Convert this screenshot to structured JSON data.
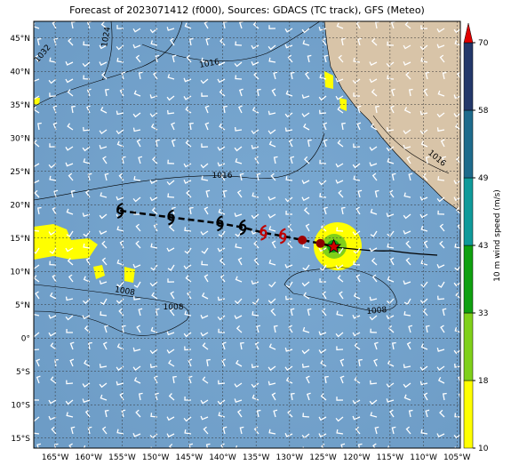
{
  "title": "Forecast of 2023071412 (f000), Sources: GDACS (TC track), GFS (Meteo)",
  "map": {
    "xlim": [
      -168.2,
      -104.5
    ],
    "ylim": [
      -16.5,
      47.5
    ],
    "xticks": [
      {
        "value": -165,
        "label": "165°W"
      },
      {
        "value": -160,
        "label": "160°W"
      },
      {
        "value": -155,
        "label": "155°W"
      },
      {
        "value": -150,
        "label": "150°W"
      },
      {
        "value": -145,
        "label": "145°W"
      },
      {
        "value": -140,
        "label": "140°W"
      },
      {
        "value": -135,
        "label": "135°W"
      },
      {
        "value": -130,
        "label": "130°W"
      },
      {
        "value": -125,
        "label": "125°W"
      },
      {
        "value": -120,
        "label": "120°W"
      },
      {
        "value": -115,
        "label": "115°W"
      },
      {
        "value": -110,
        "label": "110°W"
      },
      {
        "value": -105,
        "label": "105°W"
      }
    ],
    "yticks": [
      {
        "value": 45,
        "label": "45°N"
      },
      {
        "value": 40,
        "label": "40°N"
      },
      {
        "value": 35,
        "label": "35°N"
      },
      {
        "value": 30,
        "label": "30°N"
      },
      {
        "value": 25,
        "label": "25°N"
      },
      {
        "value": 20,
        "label": "20°N"
      },
      {
        "value": 15,
        "label": "15°N"
      },
      {
        "value": 10,
        "label": "10°N"
      },
      {
        "value": 5,
        "label": "5°N"
      },
      {
        "value": 0,
        "label": "0°"
      },
      {
        "value": -5,
        "label": "5°S"
      },
      {
        "value": -10,
        "label": "10°S"
      },
      {
        "value": -15,
        "label": "15°S"
      }
    ],
    "contour_labels": [
      "1032",
      "1024",
      "1016",
      "1016",
      "1016",
      "1008",
      "1008",
      "1008"
    ],
    "track": {
      "lon": [
        -155.3,
        -147.7,
        -140.4,
        -137,
        -133.9,
        -131,
        -128.1,
        -125.4,
        -123.4
      ],
      "lat": [
        19.1,
        18.1,
        17.2,
        16.6,
        15.8,
        15.3,
        14.7,
        14.2,
        13.7
      ],
      "colors": [
        "#000",
        "#000",
        "#000",
        "#000",
        "#c00000",
        "#c00000",
        "#a00000",
        "#8b0000",
        "#d00000"
      ]
    }
  },
  "colorbar": {
    "label": "10 m wind speed (m/s)",
    "ticks": [
      10,
      18,
      33,
      43,
      49,
      58,
      70
    ],
    "colors": [
      "#ffff00",
      "#80d01a",
      "#10a010",
      "#109a9a",
      "#1e6b8c",
      "#23386a"
    ],
    "extend_color": "#e00000"
  }
}
